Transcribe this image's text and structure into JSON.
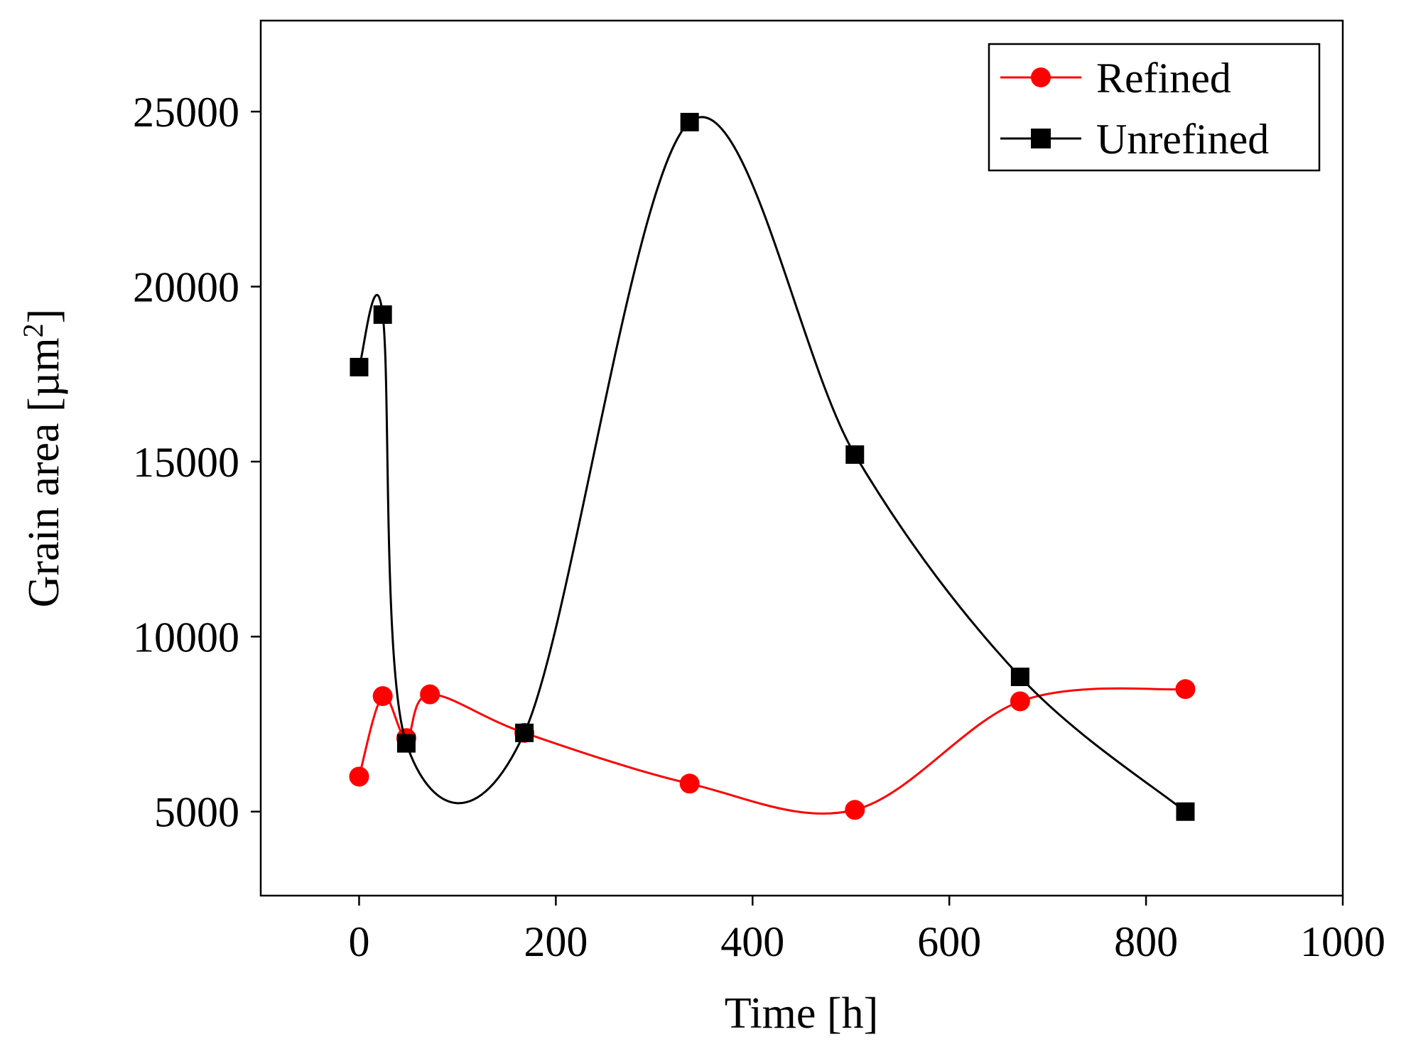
{
  "chart_data": {
    "type": "line",
    "title": "",
    "xlabel": "Time [h]",
    "ylabel_main": "Grain area [µm",
    "ylabel_sup": "2",
    "ylabel_close": "]",
    "xlim": [
      -100,
      1000
    ],
    "ylim": [
      2600,
      27600
    ],
    "xticks": [
      0,
      200,
      400,
      600,
      800,
      1000
    ],
    "xtick_labels": [
      "0",
      "200",
      "400",
      "600",
      "800",
      "1000"
    ],
    "yticks": [
      5000,
      10000,
      15000,
      20000,
      25000
    ],
    "ytick_labels": [
      "5000",
      "10000",
      "15000",
      "20000",
      "25000"
    ],
    "grid": false,
    "legend_position": "top-right",
    "series": [
      {
        "name": "Refined",
        "color": "#ff0000",
        "marker": "circle",
        "x": [
          0,
          24,
          48,
          72,
          168,
          336,
          504,
          672,
          840
        ],
        "y": [
          6000,
          8300,
          7100,
          8350,
          7250,
          5800,
          5050,
          8150,
          8500
        ]
      },
      {
        "name": "Unrefined",
        "color": "#000000",
        "marker": "square",
        "x": [
          0,
          24,
          48,
          168,
          336,
          504,
          672,
          840
        ],
        "y": [
          17700,
          19200,
          6950,
          7250,
          24700,
          15200,
          8850,
          5000
        ]
      }
    ]
  }
}
